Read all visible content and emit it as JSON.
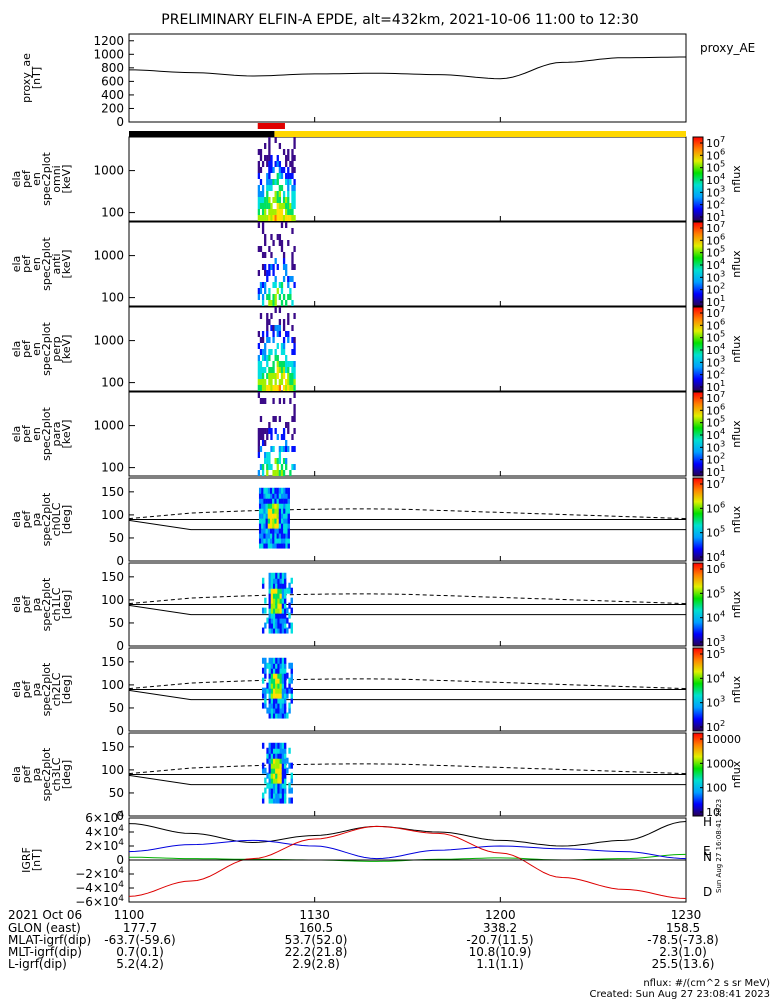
{
  "title": "PRELIMINARY ELFIN-A EPDE, alt=432km, 2021-10-06 11:00 to 12:30",
  "colors": {
    "trace": "#000000",
    "orbit_black": "#000000",
    "orbit_yellow": "#ffd700",
    "science": "#e00000",
    "H": "#000000",
    "E": "#00b000",
    "N": "#0000dd",
    "D": "#dd0000"
  },
  "chart_data": [
    {
      "type": "line",
      "name": "proxy_ae",
      "ylabel": "proxy_ae\n[nT]",
      "legend": "proxy_AE",
      "ylim": [
        0,
        1300
      ],
      "yticks": [
        "1200",
        "1000",
        "800",
        "600",
        "400",
        "200",
        "0"
      ],
      "x": [
        0,
        10,
        20,
        30,
        40,
        50,
        60,
        70,
        80,
        90
      ],
      "values": [
        770,
        730,
        680,
        710,
        720,
        700,
        640,
        880,
        950,
        960
      ]
    },
    {
      "type": "heatmap",
      "label": [
        "ela",
        "pef",
        "en",
        "spec2plot",
        "omni",
        "[keV]"
      ],
      "yticks": [
        "1000",
        "100"
      ],
      "zunit": "nflux",
      "zticks": [
        "10^7",
        "10^6",
        "10^5",
        "10^4",
        "10^3",
        "10^2",
        "10^1"
      ]
    },
    {
      "type": "heatmap",
      "label": [
        "ela",
        "pef",
        "en",
        "spec2plot",
        "anti",
        "[keV]"
      ],
      "yticks": [
        "1000",
        "100"
      ],
      "zunit": "nflux",
      "zticks": [
        "10^7",
        "10^6",
        "10^5",
        "10^4",
        "10^3",
        "10^2",
        "10^1"
      ]
    },
    {
      "type": "heatmap",
      "label": [
        "ela",
        "pef",
        "en",
        "spec2plot",
        "perp",
        "[keV]"
      ],
      "yticks": [
        "1000",
        "100"
      ],
      "zunit": "nflux",
      "zticks": [
        "10^7",
        "10^6",
        "10^5",
        "10^4",
        "10^3",
        "10^2",
        "10^1"
      ]
    },
    {
      "type": "heatmap",
      "label": [
        "ela",
        "pef",
        "en",
        "spec2plot",
        "para",
        "[keV]"
      ],
      "yticks": [
        "1000",
        "100"
      ],
      "zunit": "nflux",
      "zticks": [
        "10^7",
        "10^6",
        "10^5",
        "10^4",
        "10^3",
        "10^2",
        "10^1"
      ]
    },
    {
      "type": "heatmap",
      "label": [
        "ela",
        "pef",
        "pa",
        "spec2plot",
        "ch0LC",
        "[deg]"
      ],
      "ylim": [
        0,
        180
      ],
      "yticks": [
        "150",
        "100",
        "50",
        "0"
      ],
      "zunit": "nflux",
      "zticks": [
        "10^7",
        "10^6",
        "10^5",
        "10^4"
      ]
    },
    {
      "type": "heatmap",
      "label": [
        "ela",
        "pef",
        "pa",
        "spec2plot",
        "ch1LC",
        "[deg]"
      ],
      "ylim": [
        0,
        180
      ],
      "yticks": [
        "150",
        "100",
        "50",
        "0"
      ],
      "zunit": "nflux",
      "zticks": [
        "10^6",
        "10^5",
        "10^4",
        "10^3"
      ]
    },
    {
      "type": "heatmap",
      "label": [
        "ela",
        "pef",
        "pa",
        "spec2plot",
        "ch2LC",
        "[deg]"
      ],
      "ylim": [
        0,
        180
      ],
      "yticks": [
        "150",
        "100",
        "50",
        "0"
      ],
      "zunit": "nflux",
      "zticks": [
        "10^5",
        "10^4",
        "10^3",
        "10^2"
      ]
    },
    {
      "type": "heatmap",
      "label": [
        "ela",
        "pef",
        "pa",
        "spec2plot",
        "ch3LC",
        "[deg]"
      ],
      "ylim": [
        0,
        180
      ],
      "yticks": [
        "150",
        "100",
        "50",
        "0"
      ],
      "zunit": "nflux",
      "zticks": [
        "10000",
        "1000",
        "100",
        "10"
      ]
    },
    {
      "type": "line",
      "name": "IGRF",
      "ylabel": "IGRF\n[nT]",
      "ylim": [
        -60000,
        60000
      ],
      "yticks": [
        "6×10^4",
        "4×10^4",
        "2×10^4",
        "0",
        "−2×10^4",
        "−4×10^4",
        "−6×10^4"
      ],
      "x": [
        0,
        10,
        20,
        30,
        40,
        50,
        60,
        70,
        80,
        90
      ],
      "series": [
        {
          "name": "H",
          "values": [
            52000,
            38000,
            25000,
            35000,
            48000,
            40000,
            28000,
            20000,
            28000,
            55000
          ]
        },
        {
          "name": "E",
          "values": [
            4000,
            2000,
            1000,
            0,
            -2000,
            1000,
            3000,
            0,
            2000,
            8000
          ]
        },
        {
          "name": "N",
          "values": [
            12000,
            22000,
            28000,
            20000,
            2000,
            14000,
            20000,
            16000,
            12000,
            2000
          ]
        },
        {
          "name": "D",
          "values": [
            -52000,
            -30000,
            2000,
            30000,
            48000,
            38000,
            10000,
            -25000,
            -42000,
            -55000
          ]
        }
      ]
    }
  ],
  "xaxis": {
    "ticks": [
      "1100",
      "1130",
      "1200",
      "1230"
    ],
    "ticks_min": [
      0,
      30,
      60,
      90
    ],
    "xlim": [
      0,
      90
    ]
  },
  "footer": {
    "date": "2021 Oct 06",
    "rows": [
      {
        "label": "GLON (east)",
        "vals": [
          "177.7",
          "160.5",
          "338.2",
          "158.5"
        ]
      },
      {
        "label": "MLAT-igrf(dip)",
        "vals": [
          "-63.7(-59.6)",
          "53.7(52.0)",
          "-20.7(11.5)",
          "-78.5(-73.8)"
        ]
      },
      {
        "label": "MLT-igrf(dip)",
        "vals": [
          "0.7(0.1)",
          "22.2(21.8)",
          "10.8(10.9)",
          "2.3(1.0)"
        ]
      },
      {
        "label": "L-igrf(dip)",
        "vals": [
          "5.2(4.2)",
          "2.9(2.8)",
          "1.1(1.1)",
          "25.5(13.6)"
        ]
      }
    ],
    "unit_note": "nflux: #/(cm^2 s sr MeV)",
    "created": "Created: Sun Aug 27 23:08:41 2023",
    "side_stamp": "Sun Aug 27 16:08:41 2023"
  }
}
